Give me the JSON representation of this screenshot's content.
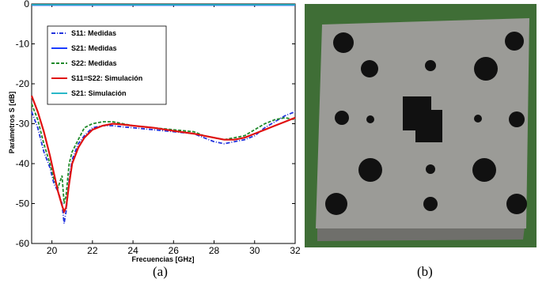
{
  "chart_data": {
    "type": "line",
    "title": "",
    "xlabel": "Frecuencias  [GHz]",
    "ylabel": "Parámetros S   [dB]",
    "xlim": [
      19,
      32
    ],
    "ylim": [
      -60,
      0
    ],
    "xticks": [
      "20",
      "22",
      "24",
      "26",
      "28",
      "30",
      "32"
    ],
    "yticks": [
      "0",
      "-10",
      "-20",
      "-30",
      "-40",
      "-50",
      "-60"
    ],
    "grid": false,
    "legend_position": "top-left",
    "series": [
      {
        "name": "S11: Medidas",
        "color": "#2233dd",
        "style": "dashdot",
        "x": [
          19.0,
          19.3,
          19.6,
          19.9,
          20.1,
          20.3,
          20.5,
          20.6,
          20.7,
          20.85,
          21.0,
          21.3,
          21.6,
          22.0,
          22.5,
          23.0,
          23.5,
          24.0,
          25.0,
          26.0,
          27.0,
          27.5,
          28.0,
          28.5,
          29.0,
          29.5,
          30.0,
          30.5,
          31.0,
          31.5,
          32.0
        ],
        "y": [
          -27,
          -31,
          -37,
          -41,
          -45,
          -47,
          -50,
          -55,
          -52,
          -44,
          -39,
          -35,
          -33,
          -31,
          -30.5,
          -30.5,
          -30.8,
          -31,
          -31.5,
          -32,
          -32.5,
          -33.5,
          -34.5,
          -35,
          -34.5,
          -34,
          -33,
          -31,
          -29.5,
          -28,
          -27
        ]
      },
      {
        "name": "S21: Medidas",
        "color": "#1a3cff",
        "style": "solid",
        "x": [
          19,
          32
        ],
        "y": [
          -0.3,
          -0.3
        ]
      },
      {
        "name": "S22: Medidas",
        "color": "#1f8a2a",
        "style": "dashed",
        "x": [
          19.0,
          19.3,
          19.6,
          19.9,
          20.1,
          20.3,
          20.5,
          20.6,
          20.7,
          20.85,
          21.0,
          21.3,
          21.6,
          22.0,
          22.5,
          23.0,
          23.5,
          24.0,
          25.0,
          26.0,
          27.0,
          27.5,
          28.0,
          28.5,
          29.0,
          29.5,
          30.0,
          30.5,
          31.0,
          31.5,
          32.0
        ],
        "y": [
          -25,
          -29,
          -35,
          -40,
          -44,
          -46,
          -43,
          -50,
          -48,
          -40,
          -37,
          -34,
          -31,
          -30,
          -29.5,
          -29.5,
          -30,
          -30.5,
          -31,
          -31.5,
          -32,
          -33,
          -33.5,
          -34,
          -33.5,
          -33,
          -31.5,
          -30,
          -29,
          -28.5,
          -29
        ]
      },
      {
        "name": "S11=S22: Simulación",
        "color": "#e01010",
        "style": "solid",
        "x": [
          19.0,
          19.3,
          19.6,
          19.9,
          20.1,
          20.3,
          20.5,
          20.6,
          20.7,
          20.85,
          21.0,
          21.3,
          21.6,
          22.0,
          22.5,
          23.0,
          23.5,
          24.0,
          25.0,
          26.0,
          27.0,
          27.5,
          28.0,
          28.5,
          29.0,
          29.5,
          30.0,
          30.5,
          31.0,
          31.5,
          32.0
        ],
        "y": [
          -23,
          -27,
          -32,
          -38,
          -42.5,
          -47,
          -50.5,
          -52,
          -51,
          -45,
          -40,
          -36,
          -33.5,
          -31.5,
          -30.5,
          -30,
          -30.2,
          -30.5,
          -31,
          -31.8,
          -32.5,
          -33,
          -33.5,
          -34,
          -34,
          -33.5,
          -32.5,
          -31.5,
          -30.5,
          -29.5,
          -28.5
        ]
      },
      {
        "name": "S21: Simulación",
        "color": "#2ab8c8",
        "style": "solid",
        "x": [
          19,
          32
        ],
        "y": [
          -0.2,
          -0.2
        ]
      }
    ]
  },
  "captions": {
    "left": "(a)",
    "right": "(b)"
  },
  "colors": {
    "photo_background": "#3f6e36",
    "plate": "#9b9b97",
    "hole": "#111111"
  }
}
